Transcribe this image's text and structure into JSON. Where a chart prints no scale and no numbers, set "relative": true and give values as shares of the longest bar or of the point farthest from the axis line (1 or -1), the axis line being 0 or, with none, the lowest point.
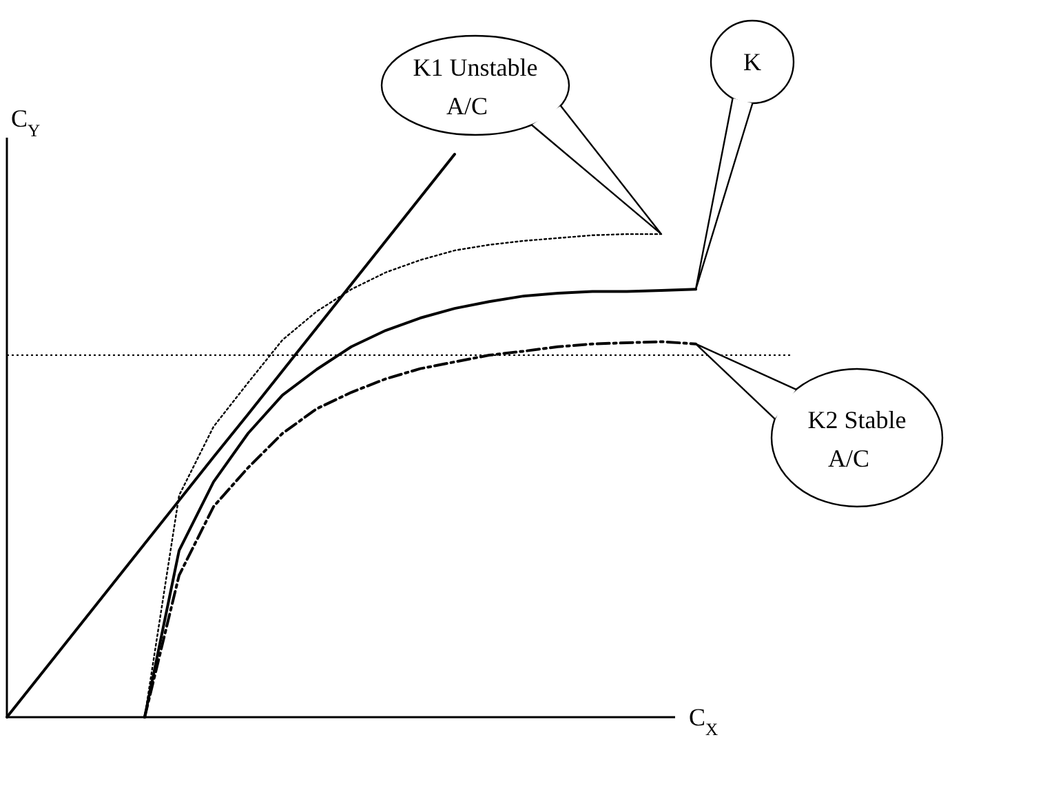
{
  "chart_data": {
    "type": "line",
    "relative": true,
    "xlabel": "C$_{X}$",
    "ylabel": "C$_{Y}$",
    "categories": [
      null,
      null,
      null,
      null,
      null,
      null,
      null,
      null,
      null,
      null,
      null,
      null,
      null,
      null,
      null,
      null,
      null,
      null,
      null,
      null,
      null
    ],
    "annotations": [
      "K1 Unstable A/C",
      "K",
      "K2 Stable A/C"
    ],
    "ref_lines": [
      {
        "axis": "y",
        "value": 0.643,
        "color": "#000000",
        "line_style": "dotted"
      }
    ],
    "series": [
      {
        "color": "#000000",
        "line_style": "solid",
        "values": [
          0,
          0.077,
          0.154,
          0.231,
          0.308,
          0.385,
          0.462,
          0.538,
          0.615,
          0.692,
          0.769,
          0.846,
          0.923,
          1,
          null,
          null,
          null,
          null,
          null,
          null,
          null
        ]
      },
      {
        "color": "#000000",
        "line_style": "dotted",
        "values": [
          null,
          null,
          null,
          null,
          0,
          0.394,
          0.516,
          0.594,
          0.67,
          0.721,
          0.76,
          0.79,
          0.812,
          0.829,
          0.839,
          0.846,
          0.851,
          0.856,
          0.858,
          0.858,
          null
        ]
      },
      {
        "color": "#000000",
        "line_style": "solid",
        "values": [
          null,
          null,
          null,
          null,
          0,
          0.296,
          0.418,
          0.504,
          0.572,
          0.618,
          0.658,
          0.687,
          0.709,
          0.726,
          0.738,
          0.748,
          0.753,
          0.756,
          0.756,
          0.758,
          0.76
        ]
      },
      {
        "color": "#000000",
        "line_style": "dashed",
        "values": [
          null,
          null,
          null,
          null,
          0,
          0.252,
          0.374,
          0.443,
          0.504,
          0.548,
          0.577,
          0.601,
          0.619,
          0.631,
          0.643,
          0.65,
          0.658,
          0.663,
          0.665,
          0.667,
          0.663
        ]
      }
    ]
  }
}
